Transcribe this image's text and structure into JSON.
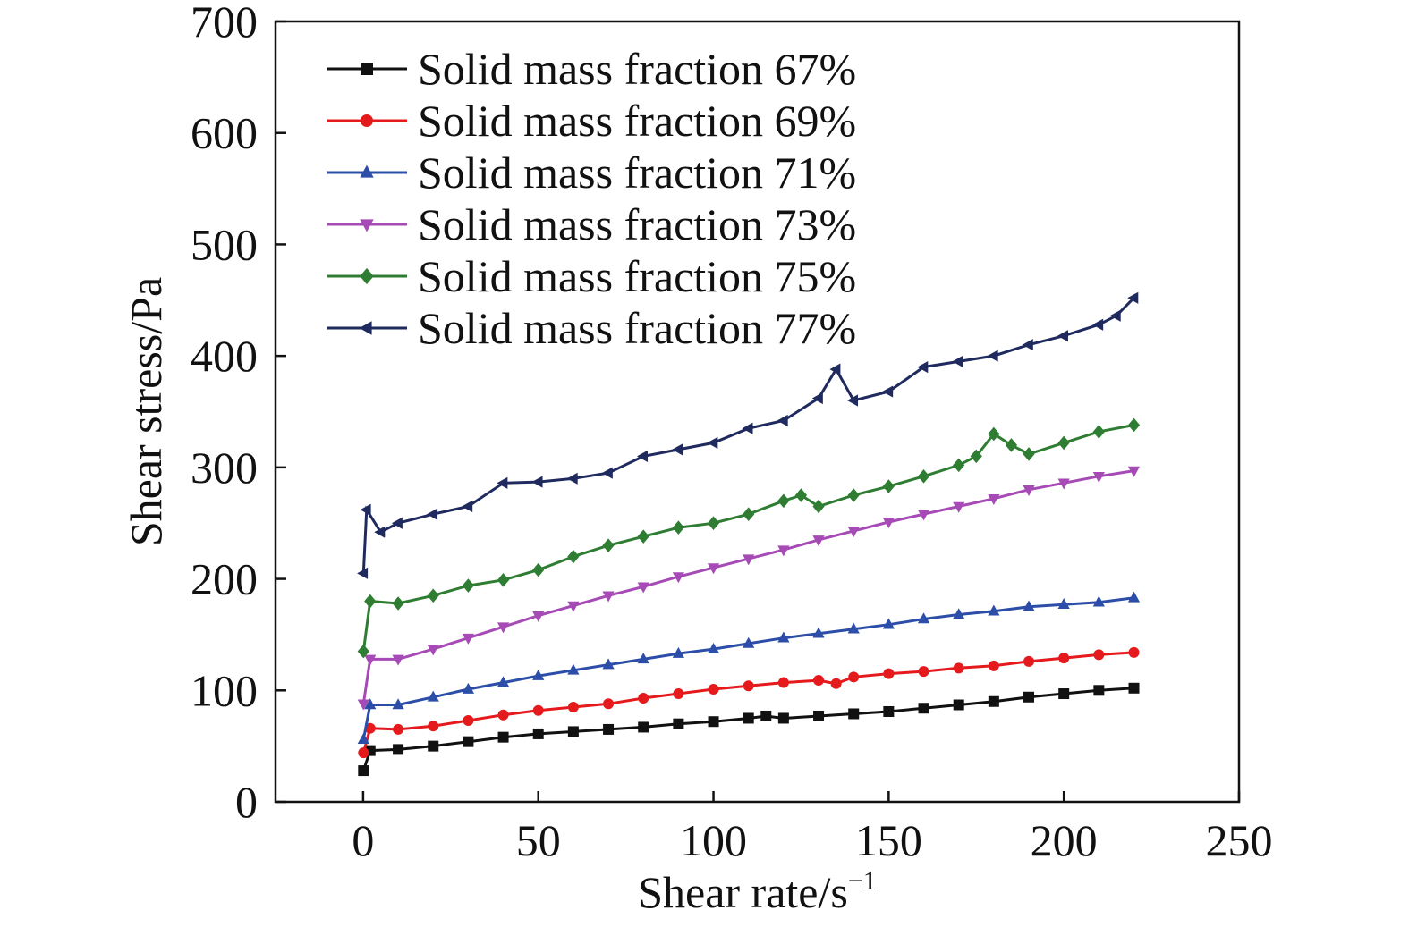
{
  "chart_data": {
    "type": "line",
    "title": "",
    "xlabel": "Shear rate/s",
    "xlabel_sup": "−1",
    "ylabel": "Shear stress/Pa",
    "xlim": [
      -25,
      250
    ],
    "ylim": [
      0,
      700
    ],
    "xticks": [
      0,
      50,
      100,
      150,
      200,
      250
    ],
    "yticks": [
      0,
      100,
      200,
      300,
      400,
      500,
      600,
      700
    ],
    "grid": false,
    "legend_position": "top-left",
    "series": [
      {
        "name": "Solid mass fraction 67%",
        "color": "#111111",
        "marker": "square",
        "points": [
          [
            0.1,
            28
          ],
          [
            2,
            46
          ],
          [
            10,
            47
          ],
          [
            20,
            50
          ],
          [
            30,
            54
          ],
          [
            40,
            58
          ],
          [
            50,
            61
          ],
          [
            60,
            63
          ],
          [
            70,
            65
          ],
          [
            80,
            67
          ],
          [
            90,
            70
          ],
          [
            100,
            72
          ],
          [
            110,
            75
          ],
          [
            115,
            77
          ],
          [
            120,
            75
          ],
          [
            130,
            77
          ],
          [
            140,
            79
          ],
          [
            150,
            81
          ],
          [
            160,
            84
          ],
          [
            170,
            87
          ],
          [
            180,
            90
          ],
          [
            190,
            94
          ],
          [
            200,
            97
          ],
          [
            210,
            100
          ],
          [
            220,
            102
          ]
        ]
      },
      {
        "name": "Solid mass fraction 69%",
        "color": "#e41a1c",
        "marker": "circle",
        "points": [
          [
            0.1,
            44
          ],
          [
            2,
            66
          ],
          [
            10,
            65
          ],
          [
            20,
            68
          ],
          [
            30,
            73
          ],
          [
            40,
            78
          ],
          [
            50,
            82
          ],
          [
            60,
            85
          ],
          [
            70,
            88
          ],
          [
            80,
            93
          ],
          [
            90,
            97
          ],
          [
            100,
            101
          ],
          [
            110,
            104
          ],
          [
            120,
            107
          ],
          [
            130,
            109
          ],
          [
            135,
            106
          ],
          [
            140,
            112
          ],
          [
            150,
            115
          ],
          [
            160,
            117
          ],
          [
            170,
            120
          ],
          [
            180,
            122
          ],
          [
            190,
            126
          ],
          [
            200,
            129
          ],
          [
            210,
            132
          ],
          [
            220,
            134
          ]
        ]
      },
      {
        "name": "Solid mass fraction 71%",
        "color": "#2c4ea8",
        "marker": "triangle-up",
        "points": [
          [
            0.1,
            56
          ],
          [
            2,
            87
          ],
          [
            10,
            87
          ],
          [
            20,
            94
          ],
          [
            30,
            101
          ],
          [
            40,
            107
          ],
          [
            50,
            113
          ],
          [
            60,
            118
          ],
          [
            70,
            123
          ],
          [
            80,
            128
          ],
          [
            90,
            133
          ],
          [
            100,
            137
          ],
          [
            110,
            142
          ],
          [
            120,
            147
          ],
          [
            130,
            151
          ],
          [
            140,
            155
          ],
          [
            150,
            159
          ],
          [
            160,
            164
          ],
          [
            170,
            168
          ],
          [
            180,
            171
          ],
          [
            190,
            175
          ],
          [
            200,
            177
          ],
          [
            210,
            179
          ],
          [
            220,
            183
          ]
        ]
      },
      {
        "name": "Solid mass fraction 73%",
        "color": "#a64ab5",
        "marker": "triangle-down",
        "points": [
          [
            0.1,
            88
          ],
          [
            2,
            128
          ],
          [
            10,
            128
          ],
          [
            20,
            137
          ],
          [
            30,
            147
          ],
          [
            40,
            157
          ],
          [
            50,
            167
          ],
          [
            60,
            176
          ],
          [
            70,
            185
          ],
          [
            80,
            193
          ],
          [
            90,
            202
          ],
          [
            100,
            210
          ],
          [
            110,
            218
          ],
          [
            120,
            226
          ],
          [
            130,
            235
          ],
          [
            140,
            243
          ],
          [
            150,
            251
          ],
          [
            160,
            258
          ],
          [
            170,
            265
          ],
          [
            180,
            272
          ],
          [
            190,
            280
          ],
          [
            200,
            286
          ],
          [
            210,
            292
          ],
          [
            220,
            297
          ]
        ]
      },
      {
        "name": "Solid mass fraction 75%",
        "color": "#2e7d32",
        "marker": "diamond",
        "points": [
          [
            0.1,
            135
          ],
          [
            2,
            180
          ],
          [
            10,
            178
          ],
          [
            20,
            185
          ],
          [
            30,
            194
          ],
          [
            40,
            199
          ],
          [
            50,
            208
          ],
          [
            60,
            220
          ],
          [
            70,
            230
          ],
          [
            80,
            238
          ],
          [
            90,
            246
          ],
          [
            100,
            250
          ],
          [
            110,
            258
          ],
          [
            120,
            270
          ],
          [
            125,
            275
          ],
          [
            130,
            265
          ],
          [
            140,
            275
          ],
          [
            150,
            283
          ],
          [
            160,
            292
          ],
          [
            170,
            302
          ],
          [
            175,
            310
          ],
          [
            180,
            330
          ],
          [
            185,
            320
          ],
          [
            190,
            312
          ],
          [
            200,
            322
          ],
          [
            210,
            332
          ],
          [
            220,
            338
          ]
        ]
      },
      {
        "name": "Solid mass fraction 77%",
        "color": "#1f2a5e",
        "marker": "triangle-left",
        "points": [
          [
            0.1,
            205
          ],
          [
            1,
            262
          ],
          [
            5,
            242
          ],
          [
            10,
            250
          ],
          [
            20,
            258
          ],
          [
            30,
            265
          ],
          [
            40,
            286
          ],
          [
            50,
            287
          ],
          [
            60,
            290
          ],
          [
            70,
            295
          ],
          [
            80,
            310
          ],
          [
            90,
            316
          ],
          [
            100,
            322
          ],
          [
            110,
            335
          ],
          [
            120,
            342
          ],
          [
            130,
            362
          ],
          [
            135,
            388
          ],
          [
            140,
            360
          ],
          [
            150,
            368
          ],
          [
            160,
            390
          ],
          [
            170,
            395
          ],
          [
            180,
            400
          ],
          [
            190,
            410
          ],
          [
            200,
            418
          ],
          [
            210,
            428
          ],
          [
            215,
            436
          ],
          [
            220,
            452
          ]
        ]
      }
    ]
  }
}
